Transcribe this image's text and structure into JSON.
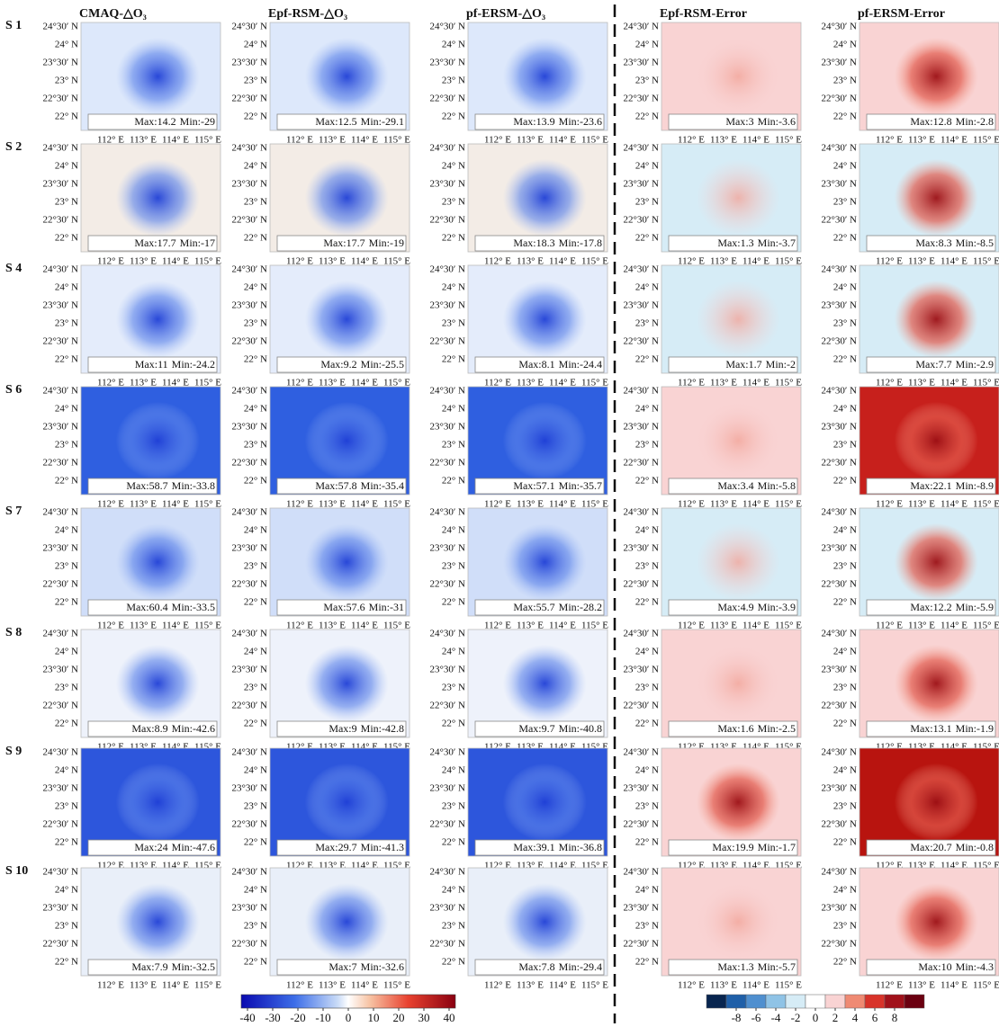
{
  "columns": [
    "CMAQ-△O₃",
    "Epf-RSM-△O₃",
    "pf-ERSM-△O₃",
    "Epf-RSM-Error",
    "pf-ERSM-Error"
  ],
  "stat_labels": {
    "max": "Max:",
    "min": "Min:"
  },
  "lat_ticks": [
    "24°30′ N",
    "24° N",
    "23°30′ N",
    "23° N",
    "22°30′ N",
    "22° N"
  ],
  "lon_ticks": [
    "112° E",
    "113° E",
    "114° E",
    "115° E"
  ],
  "rows": [
    {
      "label": "S 1",
      "panels": [
        {
          "max": 14.2,
          "min": -29
        },
        {
          "max": 12.5,
          "min": -29.1
        },
        {
          "max": 13.9,
          "min": -23.6
        },
        {
          "max": 3,
          "min": -3.6
        },
        {
          "max": 12.8,
          "min": -2.8
        }
      ]
    },
    {
      "label": "S 2",
      "panels": [
        {
          "max": 17.7,
          "min": -17
        },
        {
          "max": 17.7,
          "min": -19
        },
        {
          "max": 18.3,
          "min": -17.8
        },
        {
          "max": 1.3,
          "min": -3.7
        },
        {
          "max": 8.3,
          "min": -8.5
        }
      ]
    },
    {
      "label": "S 4",
      "panels": [
        {
          "max": 11,
          "min": -24.2
        },
        {
          "max": 9.2,
          "min": -25.5
        },
        {
          "max": 8.1,
          "min": -24.4
        },
        {
          "max": 1.7,
          "min": -2
        },
        {
          "max": 7.7,
          "min": -2.9
        }
      ]
    },
    {
      "label": "S 6",
      "panels": [
        {
          "max": 58.7,
          "min": -33.8
        },
        {
          "max": 57.8,
          "min": -35.4
        },
        {
          "max": 57.1,
          "min": -35.7
        },
        {
          "max": 3.4,
          "min": -5.8
        },
        {
          "max": 22.1,
          "min": -8.9
        }
      ]
    },
    {
      "label": "S 7",
      "panels": [
        {
          "max": 60.4,
          "min": -33.5
        },
        {
          "max": 57.6,
          "min": -31
        },
        {
          "max": 55.7,
          "min": -28.2
        },
        {
          "max": 4.9,
          "min": -3.9
        },
        {
          "max": 12.2,
          "min": -5.9
        }
      ]
    },
    {
      "label": "S 8",
      "panels": [
        {
          "max": 8.9,
          "min": -42.6
        },
        {
          "max": 9,
          "min": -42.8
        },
        {
          "max": 9.7,
          "min": -40.8
        },
        {
          "max": 1.6,
          "min": -2.5
        },
        {
          "max": 13.1,
          "min": -1.9
        }
      ]
    },
    {
      "label": "S 9",
      "panels": [
        {
          "max": 24,
          "min": -47.6
        },
        {
          "max": 29.7,
          "min": -41.3
        },
        {
          "max": 39.1,
          "min": -36.8
        },
        {
          "max": 19.9,
          "min": -1.7
        },
        {
          "max": 20.7,
          "min": -0.8
        }
      ]
    },
    {
      "label": "S 10",
      "panels": [
        {
          "max": 7.9,
          "min": -32.5
        },
        {
          "max": 7,
          "min": -32.6
        },
        {
          "max": 7.8,
          "min": -29.4
        },
        {
          "max": 1.3,
          "min": -5.7
        },
        {
          "max": 10,
          "min": -4.3
        }
      ]
    }
  ],
  "colorbars": [
    {
      "ticks": [
        -40,
        -30,
        -20,
        -10,
        0,
        10,
        20,
        30,
        40
      ]
    },
    {
      "ticks": [
        -8,
        -6,
        -4,
        -2,
        0,
        2,
        4,
        6,
        8
      ]
    }
  ]
}
